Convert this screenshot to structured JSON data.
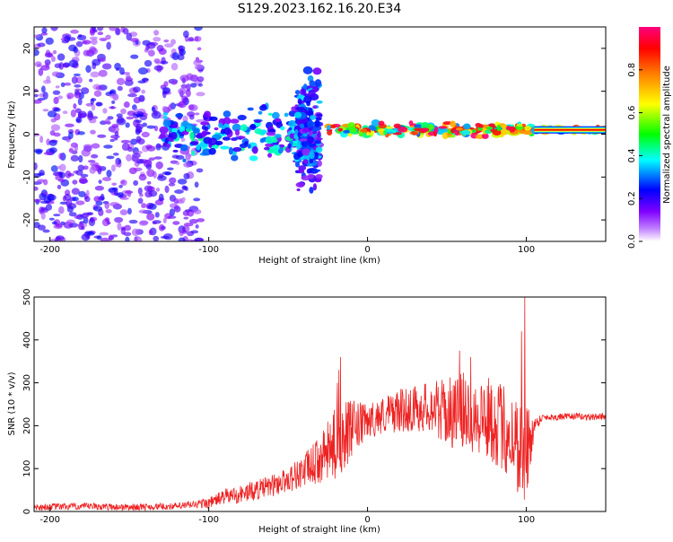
{
  "title": "S129.2023.162.16.20.E34",
  "chart_data": [
    {
      "type": "heatmap",
      "xlabel": "Height of straight line (km)",
      "ylabel": "Frequency (Hz)",
      "xlim": [
        -210,
        150
      ],
      "ylim": [
        -25,
        25
      ],
      "x_ticks": [
        -200,
        -100,
        0,
        100
      ],
      "x_tick_labels": [
        "-200",
        "-100",
        "0",
        "100"
      ],
      "y_ticks": [
        -20,
        -10,
        0,
        10,
        20
      ],
      "y_tick_labels": [
        "-20",
        "-10",
        "0",
        "10",
        "20"
      ],
      "colorbar": {
        "label": "Normalized spectral amplitude",
        "range": [
          0,
          1
        ],
        "ticks": [
          0.0,
          0.2,
          0.4,
          0.6,
          0.8
        ],
        "tick_labels": [
          "0.0",
          "0.2",
          "0.4",
          "0.6",
          "0.8"
        ],
        "colors": [
          "#ffffff",
          "#7f00ff",
          "#0000ff",
          "#00ffff",
          "#00ff00",
          "#ffff00",
          "#ff7f00",
          "#ff0000",
          "#ff007f"
        ]
      },
      "regions": [
        {
          "x": [
            -210,
            -105
          ],
          "freq_spread": 25,
          "level": 0.2
        },
        {
          "x": [
            -130,
            -35
          ],
          "freq_spread": 8,
          "level": 0.35
        },
        {
          "x": [
            -45,
            -30
          ],
          "freq_spread": 18,
          "level": 0.3
        },
        {
          "x": [
            -25,
            105
          ],
          "freq_spread": 2,
          "level": 0.8
        },
        {
          "x": [
            105,
            150
          ],
          "freq_spread": 1,
          "level": 0.75
        }
      ]
    },
    {
      "type": "line",
      "xlabel": "Height of straight line (km)",
      "ylabel": "SNR (10 * v/v)",
      "xlim": [
        -210,
        150
      ],
      "ylim": [
        0,
        500
      ],
      "x_ticks": [
        -200,
        -100,
        0,
        100
      ],
      "x_tick_labels": [
        "-200",
        "-100",
        "0",
        "100"
      ],
      "y_ticks": [
        0,
        100,
        200,
        300,
        400,
        500
      ],
      "y_tick_labels": [
        "0",
        "100",
        "200",
        "300",
        "400",
        "500"
      ],
      "color": "#ee2222",
      "envelope": {
        "x": [
          -210,
          -180,
          -150,
          -120,
          -100,
          -90,
          -80,
          -70,
          -60,
          -50,
          -40,
          -30,
          -22,
          -18,
          -10,
          0,
          10,
          20,
          30,
          40,
          50,
          60,
          70,
          80,
          90,
          96,
          100,
          105,
          110,
          120,
          130,
          140,
          150
        ],
        "y": [
          10,
          12,
          10,
          12,
          20,
          35,
          40,
          50,
          60,
          75,
          95,
          120,
          150,
          170,
          190,
          210,
          225,
          235,
          240,
          245,
          230,
          235,
          225,
          210,
          180,
          150,
          130,
          200,
          220,
          220,
          222,
          220,
          222
        ],
        "amp": [
          8,
          8,
          8,
          8,
          12,
          18,
          22,
          24,
          26,
          30,
          40,
          55,
          80,
          90,
          70,
          40,
          45,
          50,
          55,
          60,
          80,
          90,
          95,
          100,
          110,
          120,
          130,
          20,
          8,
          8,
          8,
          8,
          8
        ]
      },
      "spikes": [
        {
          "x": -17,
          "y": 360
        },
        {
          "x": -18,
          "y": 330
        },
        {
          "x": -19,
          "y": 300
        },
        {
          "x": 58,
          "y": 375
        },
        {
          "x": 65,
          "y": 360
        },
        {
          "x": 97,
          "y": 420
        },
        {
          "x": 99,
          "y": 500
        }
      ]
    }
  ]
}
